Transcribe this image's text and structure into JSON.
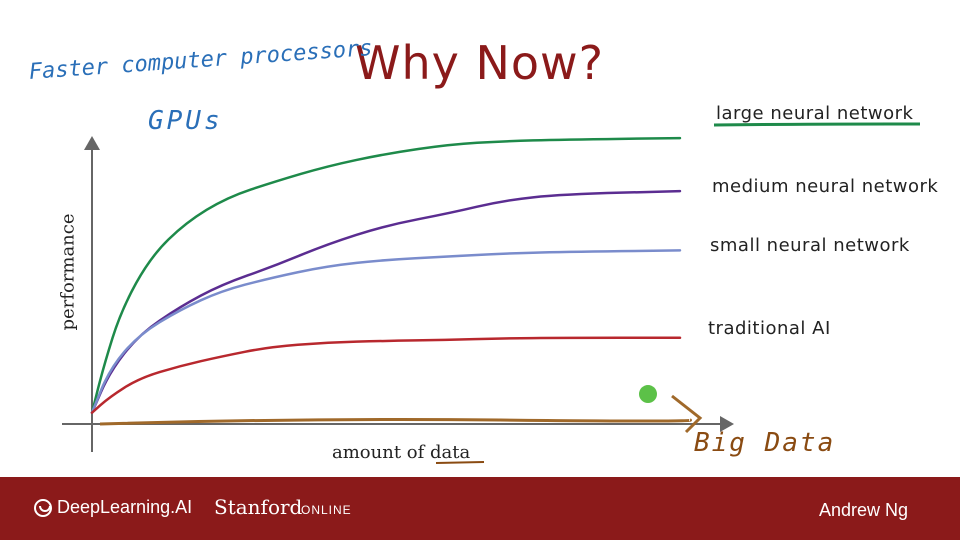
{
  "title": "Why Now?",
  "annotations": {
    "note1": "Faster computer processors",
    "note2": "GPUs",
    "x_note": "Big Data"
  },
  "footer": {
    "brand": "DeepLearning.AI",
    "stanford": "Stanford",
    "online": "ONLINE",
    "author": "Andrew Ng"
  },
  "colors": {
    "title": "#8B1A1A",
    "footer": "#8B1A1A",
    "large": "#1e8a4a",
    "medium": "#5b2d91",
    "small": "#7a8ccc",
    "traditional": "#b8282e",
    "annotation_blue": "#2a6fb8",
    "annotation_brown": "#8a4b12",
    "dot": "#5cc148"
  },
  "chart_data": {
    "type": "line",
    "title": "Why Now?",
    "xlabel": "amount of data",
    "ylabel": "performance",
    "xlim": [
      0,
      100
    ],
    "ylim": [
      0,
      100
    ],
    "grid": false,
    "legend": "labels at line ends (right)",
    "series": [
      {
        "name": "large neural network",
        "color": "#1e8a4a",
        "x": [
          0,
          2,
          5,
          10,
          16,
          23,
          31,
          40,
          50,
          61,
          70,
          80,
          100
        ],
        "y": [
          3,
          18,
          36,
          53,
          64,
          72,
          77,
          82,
          86,
          89,
          90,
          90.5,
          91
        ]
      },
      {
        "name": "medium neural network",
        "color": "#5b2d91",
        "x": [
          0,
          3,
          8,
          15,
          22,
          31,
          40,
          50,
          61,
          70,
          80,
          100
        ],
        "y": [
          3,
          16,
          28,
          37,
          44,
          50,
          57,
          63,
          67,
          71,
          73,
          74
        ]
      },
      {
        "name": "small neural network",
        "color": "#7a8ccc",
        "x": [
          0,
          3,
          8,
          15,
          22,
          30,
          40,
          50,
          60,
          70,
          80,
          100
        ],
        "y": [
          3,
          17,
          28,
          36,
          42,
          46,
          50,
          52,
          53,
          54,
          54.5,
          55
        ]
      },
      {
        "name": "traditional AI",
        "color": "#b8282e",
        "x": [
          0,
          3,
          8,
          15,
          22,
          30,
          40,
          50,
          60,
          70,
          80,
          100
        ],
        "y": [
          3,
          8,
          14,
          18,
          21,
          24,
          25.5,
          26,
          26.3,
          26.8,
          27,
          27
        ]
      }
    ],
    "marker": {
      "label": "",
      "x": 100,
      "y": 8,
      "color": "#5cc148"
    }
  }
}
